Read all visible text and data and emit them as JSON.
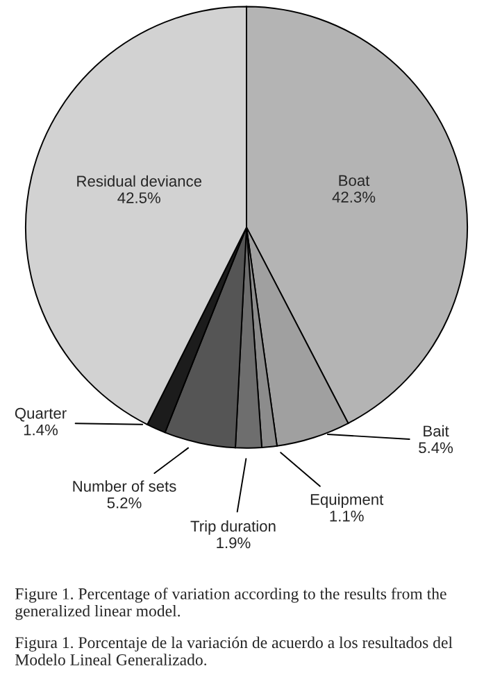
{
  "chart_data": {
    "type": "pie",
    "categories": [
      "Boat",
      "Bait",
      "Equipment",
      "Trip duration",
      "Number of sets",
      "Quarter",
      "Residual deviance"
    ],
    "values": [
      42.3,
      5.4,
      1.1,
      1.9,
      5.2,
      1.4,
      42.5
    ],
    "value_labels": [
      "42.3%",
      "5.4%",
      "1.1%",
      "1.9%",
      "5.2%",
      "1.4%",
      "42.5%"
    ],
    "colors": [
      "#b4b4b4",
      "#a0a0a0",
      "#8c8c8c",
      "#6e6e6e",
      "#555555",
      "#1c1c1c",
      "#d2d2d2"
    ],
    "annotations": [
      "Figure 1. Percentage of variation according to the results from the generalized linear model.",
      "Figura 1. Porcentaje de la variación de acuerdo a los resultados del Modelo Lineal Generalizado."
    ]
  }
}
